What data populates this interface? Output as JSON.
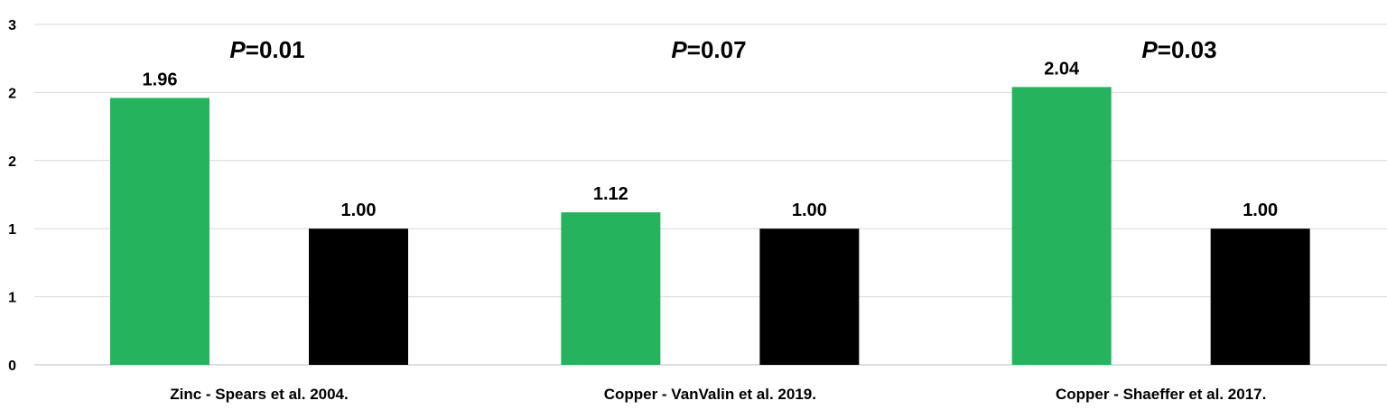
{
  "chart_data": {
    "type": "bar",
    "categories": [
      "Zinc - Spears et al. 2004.",
      "Copper - VanValin et al. 2019.",
      "Copper - Shaeffer et al. 2017."
    ],
    "series": [
      {
        "values": [
          1.96,
          1.12,
          2.04
        ],
        "data_labels": [
          "1.96",
          "1.12",
          "2.04"
        ]
      },
      {
        "values": [
          1.0,
          1.0,
          1.0
        ],
        "data_labels": [
          "1.00",
          "1.00",
          "1.00"
        ]
      }
    ],
    "y_axis": {
      "range": [
        0,
        2.5
      ],
      "tick_values": [
        0,
        0.5,
        1,
        1.5,
        2,
        2.5
      ],
      "tick_labels": [
        "0",
        "1",
        "1",
        "2",
        "2",
        "3"
      ]
    },
    "annotations": [
      {
        "prefix": "P",
        "value": "=0.01"
      },
      {
        "prefix": "P",
        "value": "=0.07"
      },
      {
        "prefix": "P",
        "value": "=0.03"
      }
    ],
    "grid": true,
    "legend": "none",
    "title": "",
    "xlabel": "",
    "ylabel": ""
  },
  "colors": {
    "series_1": "#25b35e",
    "series_2": "#000000",
    "grid": "#d9d9d9",
    "axis": "#bfbfbf"
  }
}
